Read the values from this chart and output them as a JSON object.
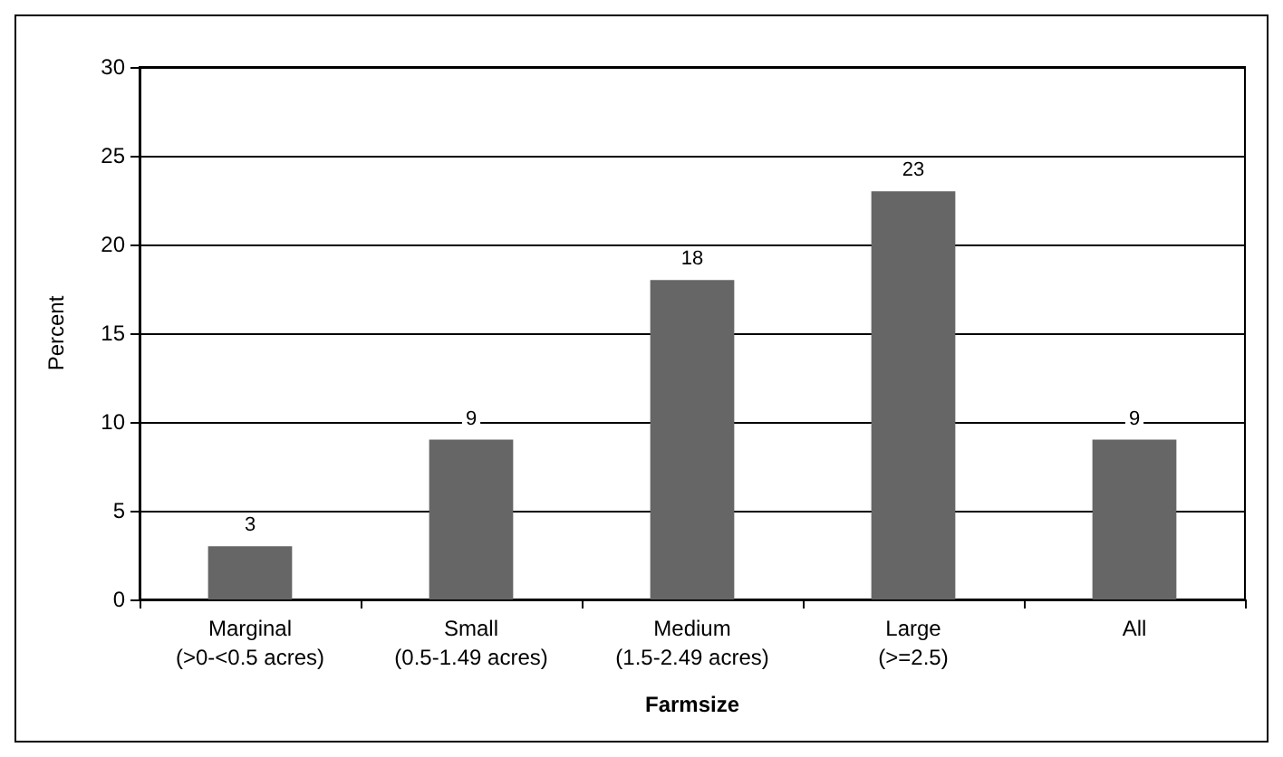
{
  "chart_data": {
    "type": "bar",
    "xlabel": "Farmsize",
    "ylabel": "Percent",
    "categories": [
      "Marginal\n(>0-<0.5 acres)",
      "Small\n(0.5-1.49 acres)",
      "Medium\n(1.5-2.49 acres)",
      "Large\n(>=2.5)",
      "All"
    ],
    "values": [
      3,
      9,
      18,
      23,
      9
    ],
    "color": "#666666",
    "ylim": [
      0,
      30
    ],
    "yticks": [
      0,
      5,
      10,
      15,
      20,
      25,
      30
    ],
    "grid": "y",
    "data_labels": true
  }
}
